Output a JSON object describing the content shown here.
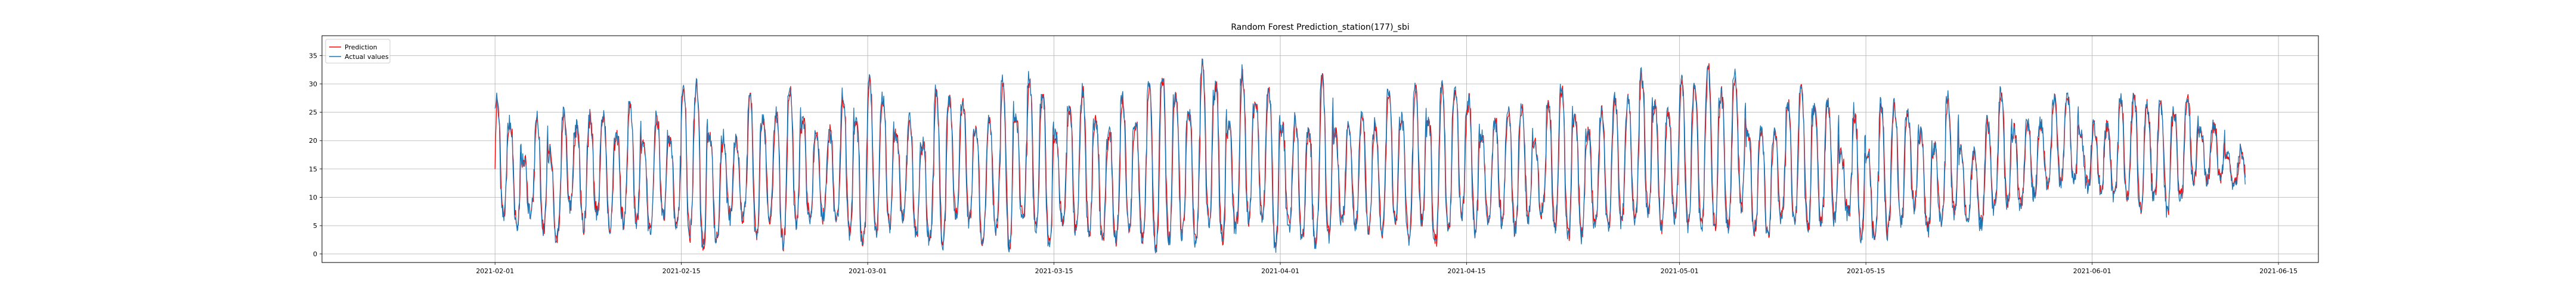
{
  "chart_data": {
    "type": "line",
    "title": "Random Forest Prediction_station(177)_sbi",
    "xlabel": "",
    "ylabel": "",
    "x_range": [
      "2021-01-19",
      "2021-06-18"
    ],
    "ylim": [
      -1.5,
      38.5
    ],
    "grid": true,
    "legend_position": "top-left",
    "x_ticks": [
      "2021-02-01",
      "2021-02-15",
      "2021-03-01",
      "2021-03-15",
      "2021-04-01",
      "2021-04-15",
      "2021-05-01",
      "2021-05-15",
      "2021-06-01",
      "2021-06-15"
    ],
    "y_ticks": [
      0,
      5,
      10,
      15,
      20,
      25,
      30,
      35
    ],
    "series": [
      {
        "name": "Prediction",
        "color": "#ff0000"
      },
      {
        "name": "Actual values",
        "color": "#1f77b4"
      }
    ],
    "daily_sample": [
      {
        "date": "2021-02-01",
        "actual_max": 28,
        "actual_min": 3
      },
      {
        "date": "2021-02-15",
        "actual_max": 32,
        "actual_min": 1
      },
      {
        "date": "2021-03-01",
        "actual_max": 31,
        "actual_min": 1
      },
      {
        "date": "2021-03-15",
        "actual_max": 32,
        "actual_min": 0
      },
      {
        "date": "2021-04-01",
        "actual_max": 34,
        "actual_min": 1
      },
      {
        "date": "2021-04-15",
        "actual_max": 30,
        "actual_min": 1
      },
      {
        "date": "2021-05-01",
        "actual_max": 34,
        "actual_min": 3
      },
      {
        "date": "2021-05-15",
        "actual_max": 28,
        "actual_min": 2
      },
      {
        "date": "2021-06-01",
        "actual_max": 30,
        "actual_min": 8
      },
      {
        "date": "2021-06-12",
        "actual_max": 27,
        "actual_min": 7
      }
    ],
    "data_start": "2021-02-01",
    "data_end": "2021-06-12"
  }
}
